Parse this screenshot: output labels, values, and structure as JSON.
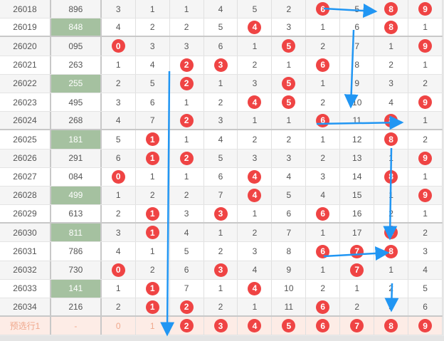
{
  "colors": {
    "hit_ball": "#ef4444",
    "highlight_number": "#a5c1a0",
    "arrow": "#2196f3",
    "preselect_bg": "#fdece6"
  },
  "rows": [
    {
      "issue": "26018",
      "number": "896",
      "green": false,
      "cells": [
        "3",
        "1",
        "1",
        "4",
        "5",
        "2",
        "6",
        "5",
        "8",
        "9"
      ],
      "hits": [
        6,
        8,
        9
      ]
    },
    {
      "issue": "26019",
      "number": "848",
      "green": true,
      "cells": [
        "4",
        "2",
        "2",
        "5",
        "4",
        "3",
        "1",
        "6",
        "8",
        "1"
      ],
      "hits": [
        4,
        8
      ]
    },
    {
      "issue": "26020",
      "number": "095",
      "green": false,
      "cells": [
        "0",
        "3",
        "3",
        "6",
        "1",
        "5",
        "2",
        "7",
        "1",
        "9"
      ],
      "hits": [
        0,
        5,
        9
      ]
    },
    {
      "issue": "26021",
      "number": "263",
      "green": false,
      "cells": [
        "1",
        "4",
        "2",
        "3",
        "2",
        "1",
        "6",
        "8",
        "2",
        "1"
      ],
      "hits": [
        2,
        3,
        6
      ]
    },
    {
      "issue": "26022",
      "number": "255",
      "green": true,
      "cells": [
        "2",
        "5",
        "2",
        "1",
        "3",
        "5",
        "1",
        "9",
        "3",
        "2"
      ],
      "hits": [
        2,
        5
      ]
    },
    {
      "issue": "26023",
      "number": "495",
      "green": false,
      "cells": [
        "3",
        "6",
        "1",
        "2",
        "4",
        "5",
        "2",
        "10",
        "4",
        "9"
      ],
      "hits": [
        4,
        5,
        9
      ]
    },
    {
      "issue": "26024",
      "number": "268",
      "green": false,
      "cells": [
        "4",
        "7",
        "2",
        "3",
        "1",
        "1",
        "6",
        "11",
        "8",
        "1"
      ],
      "hits": [
        2,
        6,
        8
      ]
    },
    {
      "issue": "26025",
      "number": "181",
      "green": true,
      "cells": [
        "5",
        "1",
        "1",
        "4",
        "2",
        "2",
        "1",
        "12",
        "8",
        "2"
      ],
      "hits": [
        1,
        8
      ]
    },
    {
      "issue": "26026",
      "number": "291",
      "green": false,
      "cells": [
        "6",
        "1",
        "2",
        "5",
        "3",
        "3",
        "2",
        "13",
        "1",
        "9"
      ],
      "hits": [
        1,
        2,
        9
      ]
    },
    {
      "issue": "26027",
      "number": "084",
      "green": false,
      "cells": [
        "0",
        "1",
        "1",
        "6",
        "4",
        "4",
        "3",
        "14",
        "8",
        "1"
      ],
      "hits": [
        0,
        4,
        8
      ]
    },
    {
      "issue": "26028",
      "number": "499",
      "green": true,
      "cells": [
        "1",
        "2",
        "2",
        "7",
        "4",
        "5",
        "4",
        "15",
        "1",
        "9"
      ],
      "hits": [
        4,
        9
      ]
    },
    {
      "issue": "26029",
      "number": "613",
      "green": false,
      "cells": [
        "2",
        "1",
        "3",
        "3",
        "1",
        "6",
        "6",
        "16",
        "2",
        "1"
      ],
      "hits": [
        1,
        3,
        6
      ]
    },
    {
      "issue": "26030",
      "number": "811",
      "green": true,
      "cells": [
        "3",
        "1",
        "4",
        "1",
        "2",
        "7",
        "1",
        "17",
        "8",
        "2"
      ],
      "hits": [
        1,
        8
      ]
    },
    {
      "issue": "26031",
      "number": "786",
      "green": false,
      "cells": [
        "4",
        "1",
        "5",
        "2",
        "3",
        "8",
        "6",
        "7",
        "8",
        "3"
      ],
      "hits": [
        6,
        7,
        8
      ]
    },
    {
      "issue": "26032",
      "number": "730",
      "green": false,
      "cells": [
        "0",
        "2",
        "6",
        "3",
        "4",
        "9",
        "1",
        "7",
        "1",
        "4"
      ],
      "hits": [
        0,
        3,
        7
      ]
    },
    {
      "issue": "26033",
      "number": "141",
      "green": true,
      "cells": [
        "1",
        "1",
        "7",
        "1",
        "4",
        "10",
        "2",
        "1",
        "2",
        "5"
      ],
      "hits": [
        1,
        4
      ]
    },
    {
      "issue": "26034",
      "number": "216",
      "green": false,
      "cells": [
        "2",
        "1",
        "2",
        "2",
        "1",
        "11",
        "6",
        "2",
        "3",
        "6"
      ],
      "hits": [
        1,
        2,
        6
      ]
    }
  ],
  "preselect": {
    "label": "预选行1",
    "number": "-",
    "cells": [
      "0",
      "1",
      "2",
      "3",
      "4",
      "5",
      "6",
      "7",
      "8",
      "9"
    ],
    "hits": [
      2,
      3,
      4,
      5,
      6,
      7,
      8,
      9
    ]
  }
}
